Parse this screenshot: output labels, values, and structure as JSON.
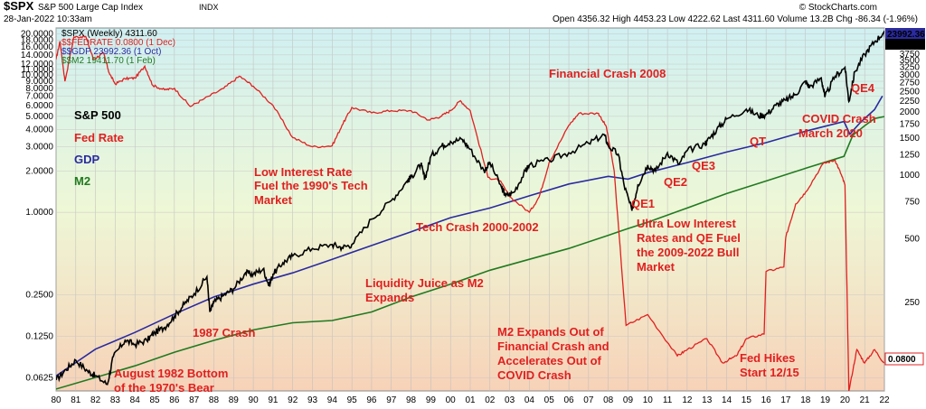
{
  "header": {
    "symbol": "$SPX",
    "name": "S&P 500 Large Cap Index",
    "exchange": "INDX",
    "date": "28-Jan-2022 10:33am",
    "ohlc": "Open 4356.32  High 4453.23  Low 4222.62  Last 4311.60  Volume 13.2B  Chg -86.34 (-1.96%)",
    "brand": "© StockCharts.com"
  },
  "legend": [
    {
      "text": "$SPX (Weekly) 4311.60",
      "color": "#000000"
    },
    {
      "text": "$$FEDRATE 0.0800 (1 Dec)",
      "color": "#e02020"
    },
    {
      "text": "$$GDP 23992.36 (1 Oct)",
      "color": "#2a2aa0"
    },
    {
      "text": "$$M2 19411.70 (1 Feb)",
      "color": "#207a20"
    }
  ],
  "badges": {
    "gdp": "23992.36",
    "spx": "4311.60",
    "fed": "0.0800"
  },
  "series_labels": [
    {
      "text": "S&P 500",
      "color": "#000000"
    },
    {
      "text": "Fed Rate",
      "color": "#e02020"
    },
    {
      "text": "GDP",
      "color": "#2a2aa0"
    },
    {
      "text": "M2",
      "color": "#207a20"
    }
  ],
  "annotations": [
    {
      "id": "fin-crash",
      "text": "Financial Crash 2008"
    },
    {
      "id": "covid-crash",
      "text": "COVID Crash"
    },
    {
      "id": "march-2020",
      "text": "March 2020"
    },
    {
      "id": "qe4",
      "text": "QE4"
    },
    {
      "id": "qt",
      "text": "QT"
    },
    {
      "id": "qe3",
      "text": "QE3"
    },
    {
      "id": "qe2",
      "text": "QE2"
    },
    {
      "id": "qe1",
      "text": "QE1"
    },
    {
      "id": "low-rate-1",
      "text": "Low Interest Rate"
    },
    {
      "id": "low-rate-2",
      "text": "Fuel the 1990's Tech"
    },
    {
      "id": "low-rate-3",
      "text": "Market"
    },
    {
      "id": "tech-crash",
      "text": "Tech Crash 2000-2002"
    },
    {
      "id": "ultra-1",
      "text": "Ultra Low Interest"
    },
    {
      "id": "ultra-2",
      "text": "Rates and QE Fuel"
    },
    {
      "id": "ultra-3",
      "text": "the 2009-2022 Bull"
    },
    {
      "id": "ultra-4",
      "text": "Market"
    },
    {
      "id": "liq-1",
      "text": "Liquidity Juice as M2"
    },
    {
      "id": "liq-2",
      "text": "Expands"
    },
    {
      "id": "crash-1987",
      "text": "1987 Crash"
    },
    {
      "id": "m2-1",
      "text": "M2 Expands Out of"
    },
    {
      "id": "m2-2",
      "text": "Financial Crash and"
    },
    {
      "id": "m2-3",
      "text": "Accelerates Out of"
    },
    {
      "id": "m2-4",
      "text": "COVID Crash"
    },
    {
      "id": "hikes-1",
      "text": "Fed Hikes"
    },
    {
      "id": "hikes-2",
      "text": "Start 12/15"
    },
    {
      "id": "bottom-1",
      "text": "August 1982 Bottom"
    },
    {
      "id": "bottom-2",
      "text": "of the 1970's Bear"
    }
  ],
  "chart_data": {
    "type": "line",
    "x_ticks": [
      "80",
      "81",
      "82",
      "83",
      "84",
      "85",
      "86",
      "87",
      "88",
      "89",
      "90",
      "91",
      "92",
      "93",
      "94",
      "95",
      "96",
      "97",
      "98",
      "99",
      "00",
      "01",
      "02",
      "03",
      "04",
      "05",
      "06",
      "07",
      "08",
      "09",
      "10",
      "11",
      "12",
      "13",
      "14",
      "15",
      "16",
      "17",
      "18",
      "19",
      "20",
      "21",
      "22"
    ],
    "left_axis": {
      "scale": "log",
      "range": [
        0.05,
        22
      ],
      "ticks": [
        "20.0000",
        "18.0000",
        "16.0000",
        "14.0000",
        "12.0000",
        "11.0000",
        "10.0000",
        "9.0000",
        "8.0000",
        "7.0000",
        "6.0000",
        "5.0000",
        "4.0000",
        "3.0000",
        "2.0000",
        "1.0000",
        "0.2500",
        "0.1250",
        "0.0625"
      ]
    },
    "right_axis": {
      "scale": "log",
      "range": [
        95,
        5000
      ],
      "ticks": [
        "3750",
        "3500",
        "3250",
        "3000",
        "2750",
        "2500",
        "2250",
        "2000",
        "1750",
        "1500",
        "1250",
        "1000",
        "750",
        "500",
        "250"
      ]
    },
    "series": [
      {
        "name": "$SPX (Weekly)",
        "color": "#000000",
        "axis": "right",
        "points": [
          [
            1980,
            107
          ],
          [
            1980.5,
            120
          ],
          [
            1981,
            133
          ],
          [
            1981.6,
            118
          ],
          [
            1982,
            112
          ],
          [
            1982.6,
            102
          ],
          [
            1982.9,
            138
          ],
          [
            1983.5,
            165
          ],
          [
            1984,
            158
          ],
          [
            1984.6,
            165
          ],
          [
            1985,
            180
          ],
          [
            1985.5,
            190
          ],
          [
            1986,
            215
          ],
          [
            1986.5,
            245
          ],
          [
            1987,
            275
          ],
          [
            1987.65,
            330
          ],
          [
            1987.8,
            225
          ],
          [
            1988,
            250
          ],
          [
            1988.5,
            270
          ],
          [
            1989,
            290
          ],
          [
            1989.6,
            345
          ],
          [
            1990,
            340
          ],
          [
            1990.5,
            360
          ],
          [
            1990.8,
            300
          ],
          [
            1991,
            340
          ],
          [
            1991.5,
            385
          ],
          [
            1992,
            415
          ],
          [
            1993,
            450
          ],
          [
            1994,
            470
          ],
          [
            1994.5,
            455
          ],
          [
            1995,
            470
          ],
          [
            1996,
            620
          ],
          [
            1997,
            760
          ],
          [
            1997.8,
            940
          ],
          [
            1998,
            980
          ],
          [
            1998.5,
            1130
          ],
          [
            1998.7,
            960
          ],
          [
            1999,
            1230
          ],
          [
            1999.5,
            1370
          ],
          [
            2000,
            1450
          ],
          [
            2000.6,
            1480
          ],
          [
            2001,
            1330
          ],
          [
            2001.7,
            1050
          ],
          [
            2002,
            1150
          ],
          [
            2002.6,
            870
          ],
          [
            2002.8,
            800
          ],
          [
            2003.2,
            830
          ],
          [
            2003.8,
            1050
          ],
          [
            2004,
            1120
          ],
          [
            2005,
            1180
          ],
          [
            2006,
            1280
          ],
          [
            2007,
            1420
          ],
          [
            2007.8,
            1560
          ],
          [
            2008,
            1380
          ],
          [
            2008.5,
            1260
          ],
          [
            2008.8,
            900
          ],
          [
            2009.2,
            680
          ],
          [
            2009.5,
            900
          ],
          [
            2010,
            1120
          ],
          [
            2010.4,
            1050
          ],
          [
            2011,
            1280
          ],
          [
            2011.6,
            1130
          ],
          [
            2012,
            1310
          ],
          [
            2012.9,
            1410
          ],
          [
            2013,
            1450
          ],
          [
            2013.5,
            1650
          ],
          [
            2014,
            1850
          ],
          [
            2015,
            2060
          ],
          [
            2015.6,
            1920
          ],
          [
            2016,
            1940
          ],
          [
            2016.5,
            2150
          ],
          [
            2017,
            2270
          ],
          [
            2017.5,
            2420
          ],
          [
            2018,
            2800
          ],
          [
            2018.2,
            2620
          ],
          [
            2018.8,
            2900
          ],
          [
            2018.98,
            2350
          ],
          [
            2019.5,
            2950
          ],
          [
            2020,
            3250
          ],
          [
            2020.2,
            2240
          ],
          [
            2020.5,
            3100
          ],
          [
            2021,
            3750
          ],
          [
            2021.5,
            4300
          ],
          [
            2021.98,
            4780
          ],
          [
            2022.08,
            4311.6
          ]
        ]
      },
      {
        "name": "$$FEDRATE",
        "color": "#e02020",
        "axis": "left",
        "points": [
          [
            1980,
            13
          ],
          [
            1980.2,
            17.6
          ],
          [
            1980.45,
            9
          ],
          [
            1980.9,
            18.9
          ],
          [
            1981.5,
            19.1
          ],
          [
            1981.9,
            13
          ],
          [
            1982.4,
            14.5
          ],
          [
            1982.7,
            10.3
          ],
          [
            1983,
            8.6
          ],
          [
            1983.5,
            9.4
          ],
          [
            1984,
            9.5
          ],
          [
            1984.5,
            11.6
          ],
          [
            1984.9,
            8.4
          ],
          [
            1985.5,
            7.8
          ],
          [
            1986,
            8
          ],
          [
            1986.8,
            5.9
          ],
          [
            1987.5,
            6.7
          ],
          [
            1988.5,
            8
          ],
          [
            1989.3,
            9.8
          ],
          [
            1990,
            8.3
          ],
          [
            1991,
            6
          ],
          [
            1992,
            3.5
          ],
          [
            1993,
            3
          ],
          [
            1994,
            3.05
          ],
          [
            1994.5,
            4.3
          ],
          [
            1995,
            5.8
          ],
          [
            1996,
            5.3
          ],
          [
            1997,
            5.5
          ],
          [
            1998,
            5.5
          ],
          [
            1998.9,
            4.7
          ],
          [
            1999.5,
            5
          ],
          [
            2000,
            5.5
          ],
          [
            2000.5,
            6.5
          ],
          [
            2001,
            5.5
          ],
          [
            2001.9,
            1.8
          ],
          [
            2002.5,
            1.7
          ],
          [
            2003,
            1.3
          ],
          [
            2004,
            1
          ],
          [
            2004.5,
            1.3
          ],
          [
            2005,
            2.3
          ],
          [
            2006,
            4.3
          ],
          [
            2006.5,
            5.25
          ],
          [
            2007.5,
            5.25
          ],
          [
            2007.9,
            4.2
          ],
          [
            2008.3,
            2
          ],
          [
            2008.9,
            0.15
          ],
          [
            2010,
            0.18
          ],
          [
            2011.5,
            0.09
          ],
          [
            2012,
            0.1
          ],
          [
            2013,
            0.12
          ],
          [
            2013.8,
            0.08
          ],
          [
            2014.5,
            0.09
          ],
          [
            2015,
            0.12
          ],
          [
            2015.9,
            0.13
          ],
          [
            2016,
            0.37
          ],
          [
            2016.9,
            0.4
          ],
          [
            2017,
            0.66
          ],
          [
            2017.5,
            1.15
          ],
          [
            2018,
            1.4
          ],
          [
            2018.9,
            2.27
          ],
          [
            2019.5,
            2.4
          ],
          [
            2019.8,
            1.9
          ],
          [
            2020,
            1.58
          ],
          [
            2020.2,
            0.05
          ],
          [
            2020.6,
            0.1
          ],
          [
            2021,
            0.08
          ],
          [
            2021.5,
            0.1
          ],
          [
            2021.98,
            0.08
          ]
        ]
      },
      {
        "name": "$$GDP",
        "color": "#2a2aa0",
        "axis": "right",
        "points": [
          [
            1980,
            112
          ],
          [
            1982,
            150
          ],
          [
            1984,
            180
          ],
          [
            1986,
            220
          ],
          [
            1988,
            265
          ],
          [
            1990,
            305
          ],
          [
            1992,
            345
          ],
          [
            1994,
            400
          ],
          [
            1996,
            465
          ],
          [
            1998,
            540
          ],
          [
            2000,
            630
          ],
          [
            2002,
            700
          ],
          [
            2004,
            800
          ],
          [
            2006,
            910
          ],
          [
            2008,
            990
          ],
          [
            2009,
            960
          ],
          [
            2010,
            1030
          ],
          [
            2012,
            1150
          ],
          [
            2014,
            1290
          ],
          [
            2016,
            1430
          ],
          [
            2018,
            1620
          ],
          [
            2019.95,
            1800
          ],
          [
            2020.25,
            1570
          ],
          [
            2020.8,
            1790
          ],
          [
            2021.5,
            2050
          ],
          [
            2021.9,
            2380
          ]
        ]
      },
      {
        "name": "$$M2",
        "color": "#207a20",
        "axis": "right",
        "points": [
          [
            1980,
            97
          ],
          [
            1982,
            110
          ],
          [
            1984,
            125
          ],
          [
            1986,
            145
          ],
          [
            1988,
            165
          ],
          [
            1990,
            185
          ],
          [
            1992,
            200
          ],
          [
            1994,
            205
          ],
          [
            1996,
            225
          ],
          [
            1998,
            265
          ],
          [
            2000,
            305
          ],
          [
            2002,
            355
          ],
          [
            2004,
            400
          ],
          [
            2006,
            450
          ],
          [
            2008,
            520
          ],
          [
            2009,
            560
          ],
          [
            2010,
            600
          ],
          [
            2012,
            700
          ],
          [
            2014,
            820
          ],
          [
            2016,
            940
          ],
          [
            2018,
            1080
          ],
          [
            2019.95,
            1230
          ],
          [
            2020.4,
            1550
          ],
          [
            2021,
            1720
          ],
          [
            2021.5,
            1860
          ],
          [
            2022,
            1900
          ]
        ]
      }
    ]
  }
}
